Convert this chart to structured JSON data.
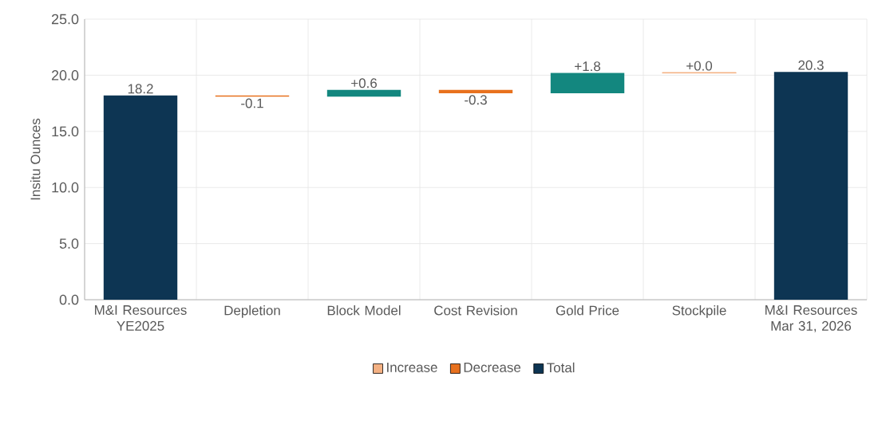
{
  "chart_data": {
    "type": "bar",
    "ylabel": "Insitu Ounces",
    "categories": [
      "M&I Resources YE2025",
      "Depletion",
      "Block Model",
      "Cost Revision",
      "Gold Price",
      "Stockpile",
      "M&I Resources Mar 31, 2026"
    ],
    "series": [
      {
        "name": "Increase",
        "color": "#f4b183",
        "colors": [
          null,
          null,
          "#13877f",
          null,
          "#13877f",
          "#f4b183",
          null
        ],
        "base": [
          null,
          null,
          18.1,
          null,
          18.4,
          20.2,
          null
        ],
        "values": [
          null,
          null,
          0.6,
          null,
          1.8,
          0.04,
          null
        ],
        "value_labels": [
          null,
          null,
          "+0.6",
          null,
          "+1.8",
          "+0.0",
          null
        ]
      },
      {
        "name": "Decrease",
        "color": "#e8711e",
        "base": [
          null,
          18.2,
          null,
          18.7,
          null,
          null,
          null
        ],
        "values": [
          null,
          -0.1,
          null,
          -0.3,
          null,
          null,
          null
        ],
        "value_labels": [
          null,
          "-0.1",
          null,
          "-0.3",
          null,
          null,
          null
        ]
      },
      {
        "name": "Total",
        "color": "#0d3553",
        "base": [
          0,
          null,
          null,
          null,
          null,
          null,
          0
        ],
        "values": [
          18.2,
          null,
          null,
          null,
          null,
          null,
          20.3
        ],
        "value_labels": [
          "18.2",
          null,
          null,
          null,
          null,
          null,
          "20.3"
        ]
      }
    ],
    "ylim": [
      0,
      25
    ],
    "yticks": [
      {
        "value": 0,
        "label": "0.0"
      },
      {
        "value": 5,
        "label": "5.0"
      },
      {
        "value": 10,
        "label": "10.0"
      },
      {
        "value": 15,
        "label": "15.0"
      },
      {
        "value": 20,
        "label": "20.0"
      },
      {
        "value": 25,
        "label": "25.0"
      }
    ],
    "grid": true,
    "legend": "bottom"
  }
}
